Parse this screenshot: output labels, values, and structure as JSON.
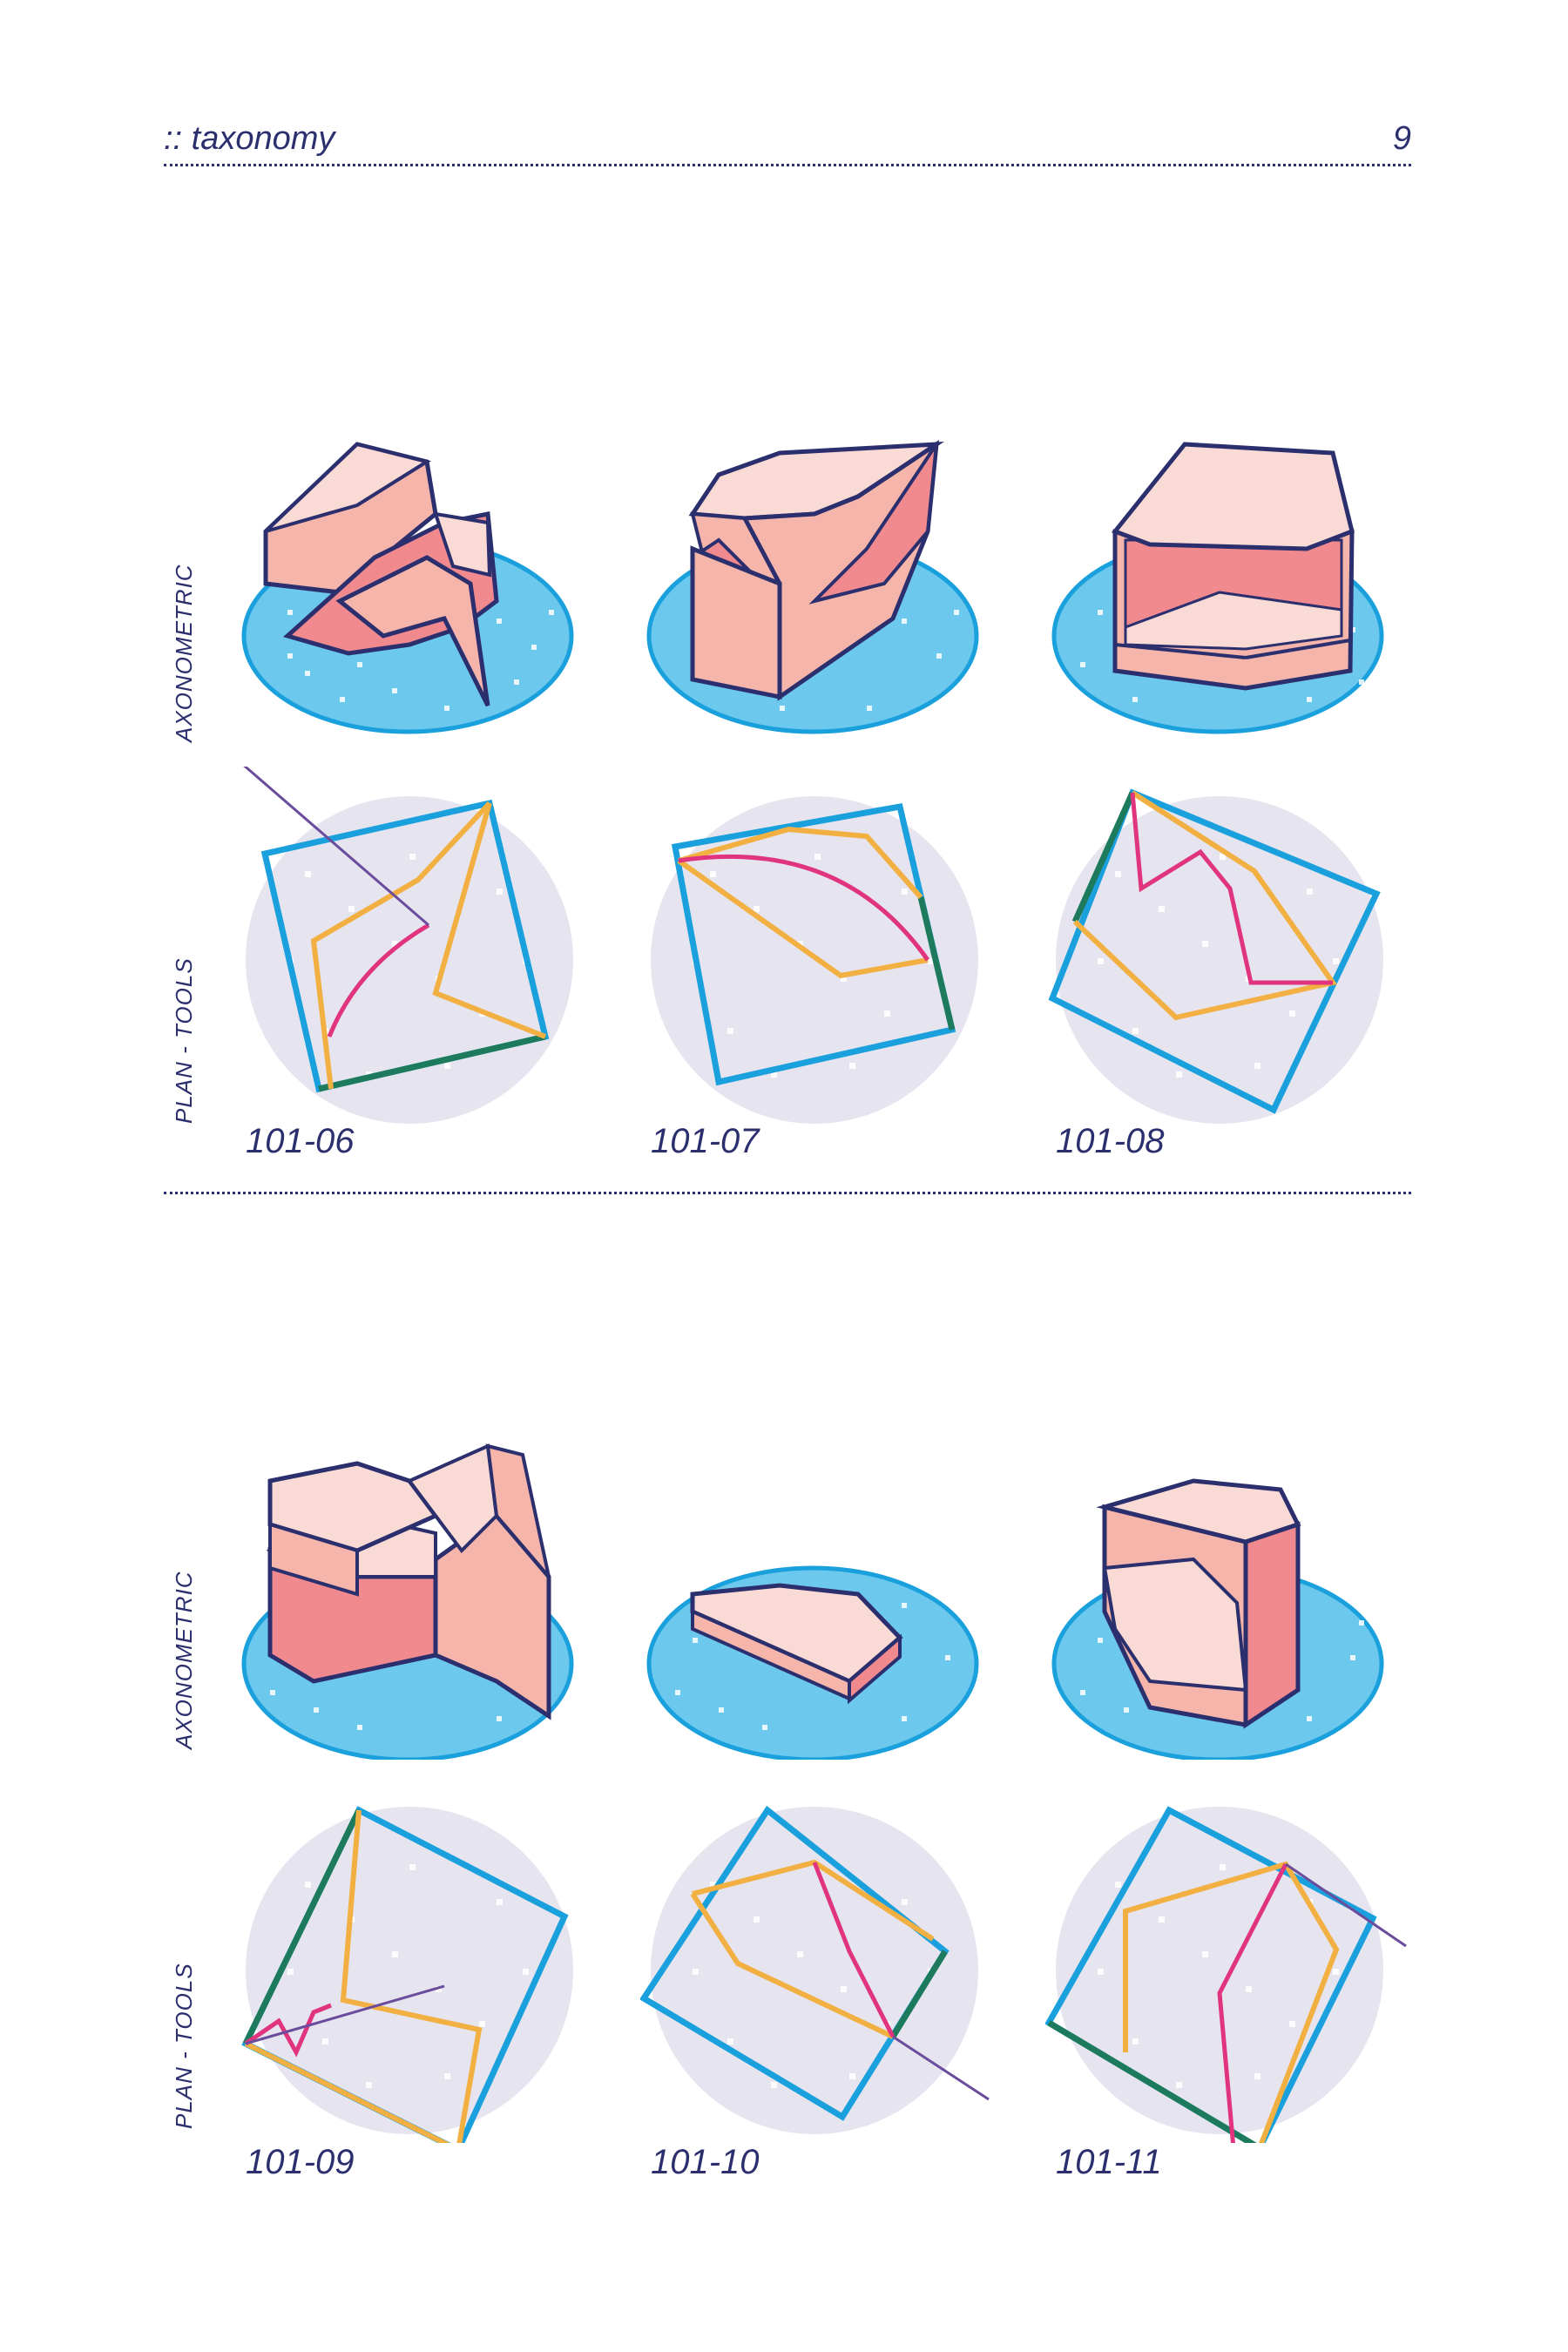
{
  "header": {
    "title": ":: taxonomy",
    "page_number": "9"
  },
  "row_labels": {
    "axonometric": "AXONOMETRIC",
    "plan_tools": "PLAN - TOOLS"
  },
  "items": [
    {
      "code": "101-06"
    },
    {
      "code": "101-07"
    },
    {
      "code": "101-08"
    },
    {
      "code": "101-09"
    },
    {
      "code": "101-10"
    },
    {
      "code": "101-11"
    }
  ],
  "colors": {
    "ink": "#2b2f6e",
    "ellipse_fill": "#6cc8ec",
    "ellipse_stroke": "#1aa0dc",
    "disc_fill": "#e6e4ef",
    "solid_light": "#fadad5",
    "solid_mid": "#f5b5ab",
    "solid_dark": "#f08a8f",
    "square_stroke": "#1aa0dc",
    "edge_green": "#1d7a5c",
    "path_yellow": "#f2b042",
    "path_magenta": "#e0347f",
    "line_purple": "#6a4c9c"
  }
}
